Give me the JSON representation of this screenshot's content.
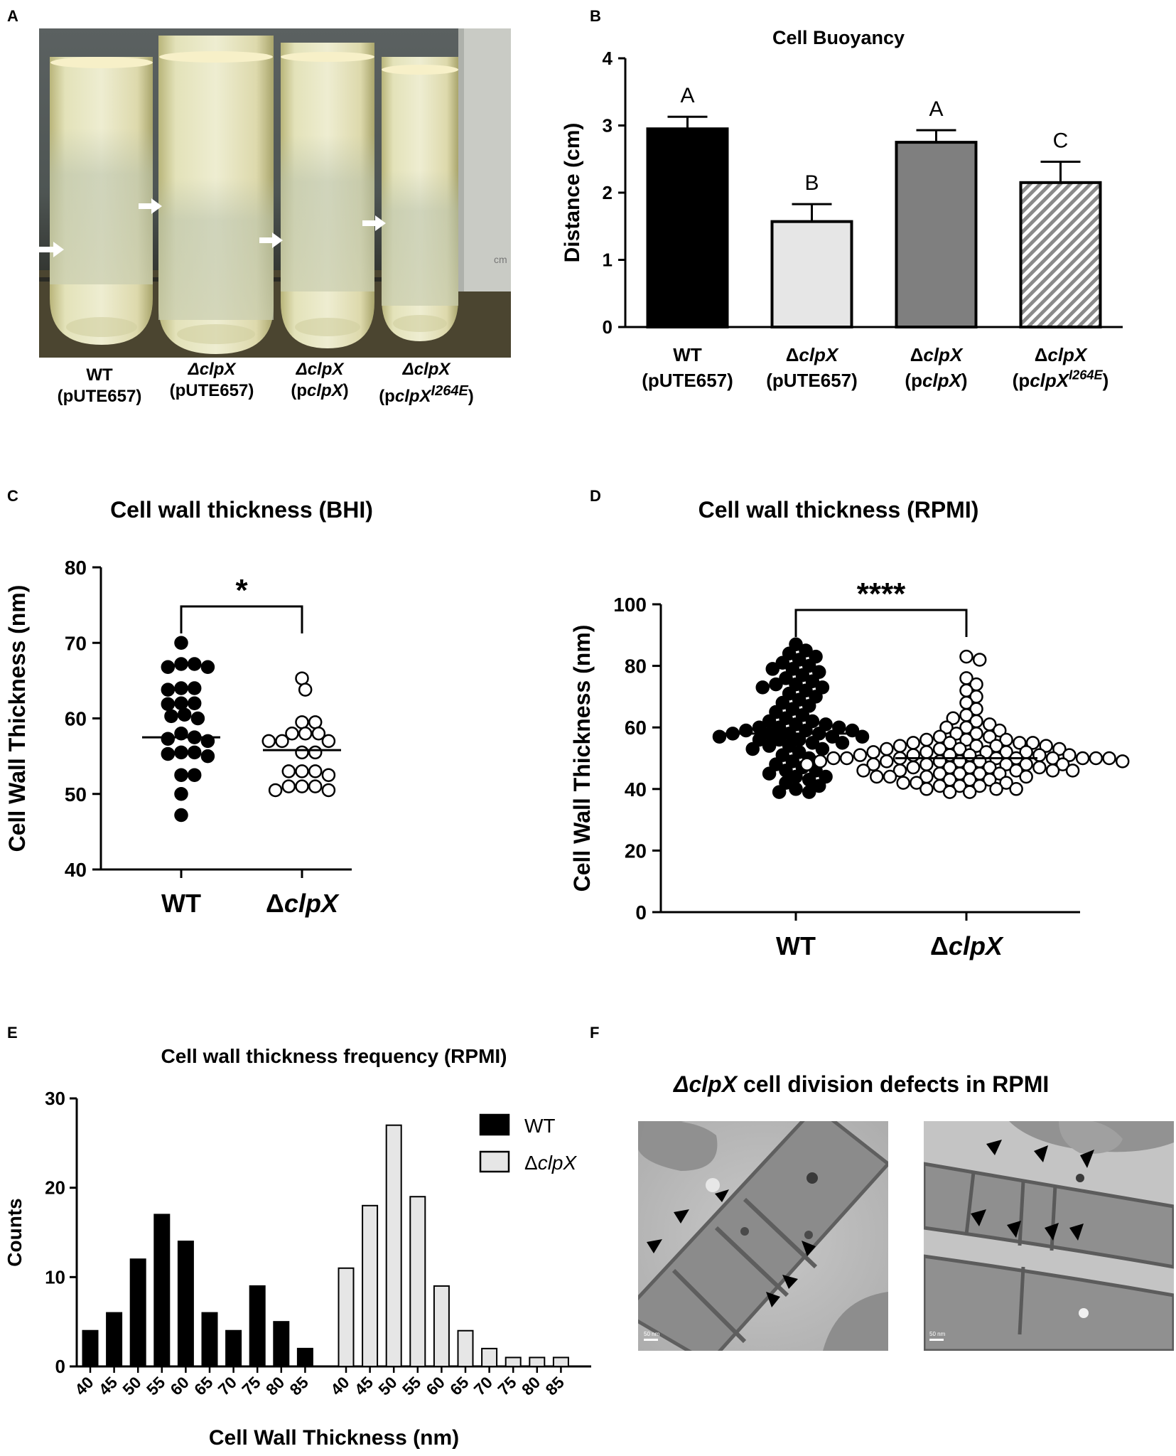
{
  "panels": {
    "a": {
      "label": "A",
      "tube_labels": [
        {
          "strain": "WT",
          "plasmid": "(pUTE657)"
        },
        {
          "strain": "ΔclpX",
          "plasmid": "(pUTE657)"
        },
        {
          "strain": "ΔclpX",
          "plasmid": "(pclpX)"
        },
        {
          "strain": "ΔclpX",
          "plasmid": "(pclpXI264E)"
        }
      ],
      "ruler_text": "cm"
    },
    "b": {
      "label": "B"
    },
    "c": {
      "label": "C"
    },
    "d": {
      "label": "D"
    },
    "e": {
      "label": "E"
    },
    "f": {
      "label": "F",
      "title_italic": "ΔclpX",
      "title_rest": " cell division defects in RPMI",
      "scale_bar": "50 nm"
    }
  },
  "chart_data": [
    {
      "id": "B",
      "type": "bar",
      "title": "Cell Buoyancy",
      "ylabel": "Distance (cm)",
      "ylim": [
        0,
        4
      ],
      "yticks": [
        0,
        1,
        2,
        3,
        4
      ],
      "categories": [
        {
          "strain": "WT",
          "plasmid": "(pUTE657)"
        },
        {
          "strain": "ΔclpX",
          "plasmid": "(pUTE657)"
        },
        {
          "strain": "ΔclpX",
          "plasmid": "(pclpX)"
        },
        {
          "strain": "ΔclpX",
          "plasmid": "(pclpXI264E)"
        }
      ],
      "values": [
        2.95,
        1.57,
        2.75,
        2.15
      ],
      "errors": [
        0.18,
        0.26,
        0.18,
        0.31
      ],
      "significance_letters": [
        "A",
        "B",
        "A",
        "C"
      ],
      "colors": [
        "#000000",
        "#e6e6e6",
        "#7f7f7f",
        "hatched"
      ],
      "grid": false
    },
    {
      "id": "C",
      "type": "scatter",
      "title": "Cell wall thickness (BHI)",
      "ylabel": "Cell Wall Thickness (nm)",
      "ylim": [
        40,
        80
      ],
      "yticks": [
        40,
        50,
        60,
        70,
        80
      ],
      "categories": [
        "WT",
        "ΔclpX"
      ],
      "series": [
        {
          "name": "WT",
          "fill": "#000000",
          "mean": 57.5,
          "values": [
            70,
            67.2,
            67.2,
            66.8,
            66.8,
            64,
            64,
            63.8,
            62,
            62,
            61.9,
            60.5,
            60.3,
            60,
            58,
            57.5,
            57.3,
            57,
            55.5,
            55.5,
            55.3,
            55,
            52.5,
            52.5,
            50,
            47.2
          ]
        },
        {
          "name": "ΔclpX",
          "fill": "#ffffff",
          "mean": 55.8,
          "values": [
            65.3,
            63.8,
            59.5,
            59.5,
            58,
            58,
            58,
            57,
            57,
            57,
            55.5,
            55.5,
            53,
            53,
            53,
            52.5,
            51,
            51,
            51,
            50.5,
            50.5
          ]
        }
      ],
      "significance": "*",
      "grid": false
    },
    {
      "id": "D",
      "type": "scatter",
      "title": "Cell wall thickness (RPMI)",
      "ylabel": "Cell Wall Thickness (nm)",
      "ylim": [
        0,
        100
      ],
      "yticks": [
        0,
        20,
        40,
        60,
        80,
        100
      ],
      "categories": [
        "WT",
        "ΔclpX"
      ],
      "series": [
        {
          "name": "WT",
          "fill": "#000000",
          "mean": 58,
          "values": [
            87,
            85,
            84,
            83,
            82,
            81,
            80,
            79,
            79,
            78,
            77,
            76,
            75,
            74,
            74,
            73,
            73,
            72,
            71,
            70,
            69,
            68,
            67,
            66,
            65,
            64,
            63,
            62,
            62,
            61,
            61,
            60,
            60,
            60,
            59,
            59,
            59,
            58,
            58,
            58,
            58,
            57,
            57,
            57,
            56,
            56,
            56,
            55,
            55,
            54,
            54,
            53,
            53,
            52,
            51,
            50,
            49,
            48,
            47,
            46,
            46,
            45,
            44,
            44,
            43,
            42,
            41,
            40,
            39,
            39
          ]
        },
        {
          "name": "ΔclpX",
          "fill": "#ffffff",
          "mean": 50,
          "values": [
            83,
            82,
            76,
            74,
            72,
            70,
            68,
            66,
            64,
            63,
            62,
            61,
            60,
            60,
            59,
            58,
            58,
            57,
            57,
            56,
            56,
            56,
            55,
            55,
            55,
            55,
            54,
            54,
            54,
            54,
            53,
            53,
            53,
            53,
            52,
            52,
            52,
            52,
            52,
            51,
            51,
            51,
            51,
            51,
            51,
            50,
            50,
            50,
            50,
            50,
            50,
            50,
            50,
            50,
            49,
            49,
            49,
            49,
            49,
            49,
            48,
            48,
            48,
            48,
            48,
            48,
            47,
            47,
            47,
            47,
            47,
            46,
            46,
            46,
            46,
            46,
            45,
            45,
            45,
            45,
            44,
            44,
            44,
            44,
            43,
            43,
            43,
            42,
            42,
            42,
            41,
            41,
            41,
            40,
            40,
            40,
            39,
            39
          ]
        }
      ],
      "significance": "****",
      "grid": false
    },
    {
      "id": "E",
      "type": "bar",
      "title": "Cell wall thickness frequency (RPMI)",
      "xlabel": "Cell Wall Thickness (nm)",
      "ylabel": "Counts",
      "ylim": [
        0,
        30
      ],
      "yticks": [
        0,
        10,
        20,
        30
      ],
      "categories": [
        "40",
        "45",
        "50",
        "55",
        "60",
        "65",
        "70",
        "75",
        "80",
        "85"
      ],
      "series": [
        {
          "name": "WT",
          "fill": "#000000",
          "values": [
            4,
            6,
            12,
            17,
            14,
            6,
            4,
            9,
            5,
            2
          ]
        },
        {
          "name": "ΔclpX",
          "fill": "#e6e6e6",
          "values": [
            11,
            18,
            27,
            19,
            9,
            4,
            2,
            1,
            1,
            1
          ]
        }
      ],
      "legend": "top-right",
      "grid": false
    }
  ]
}
